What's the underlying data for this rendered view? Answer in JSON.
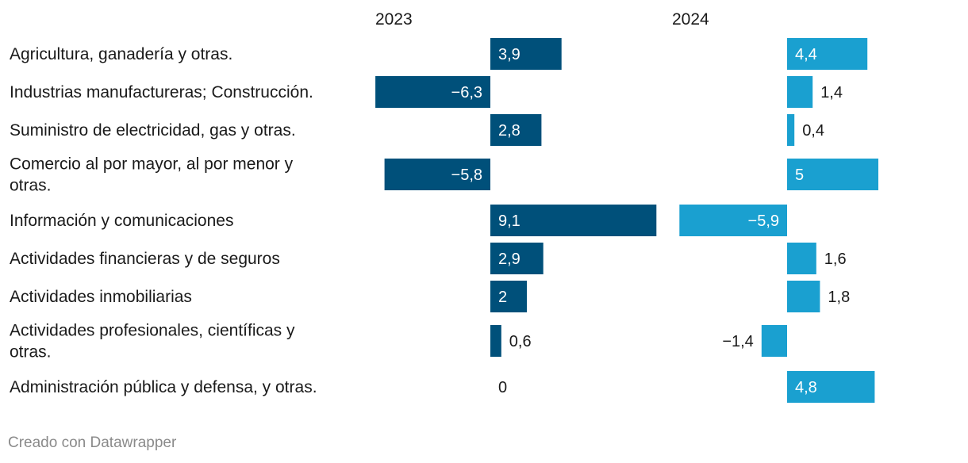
{
  "colors": {
    "series_2023": "#00507a",
    "series_2024": "#1aa0d0"
  },
  "chart_data": {
    "type": "bar",
    "orientation": "horizontal",
    "layout": "split-columns",
    "categories": [
      [
        "Agricultura, ganadería y otras."
      ],
      [
        "Industrias manufactureras; Construcción."
      ],
      [
        "Suministro de electricidad, gas y otras."
      ],
      [
        "Comercio al por mayor, al por menor y",
        "otras."
      ],
      [
        "Información y comunicaciones"
      ],
      [
        "Actividades financieras y de seguros"
      ],
      [
        "Actividades inmobiliarias"
      ],
      [
        "Actividades profesionales, científicas y",
        "otras."
      ],
      [
        "Administración pública y defensa, y otras."
      ]
    ],
    "series": [
      {
        "name": "2023",
        "values": [
          3.9,
          -6.3,
          2.8,
          -5.8,
          9.1,
          2.9,
          2.0,
          0.6,
          0
        ],
        "labels": [
          "3,9",
          "−6,3",
          "2,8",
          "−5,8",
          "9,1",
          "2,9",
          "2",
          "0,6",
          "0"
        ]
      },
      {
        "name": "2024",
        "values": [
          4.4,
          1.4,
          0.4,
          5.0,
          -5.9,
          1.6,
          1.8,
          -1.4,
          4.8
        ],
        "labels": [
          "4,4",
          "1,4",
          "0,4",
          "5",
          "−5,9",
          "1,6",
          "1,8",
          "−1,4",
          "4,8"
        ]
      }
    ],
    "title": "",
    "xlabel": "",
    "ylabel": "",
    "grid": false,
    "legend": "none"
  },
  "footer": {
    "credit": "Creado con Datawrapper"
  }
}
